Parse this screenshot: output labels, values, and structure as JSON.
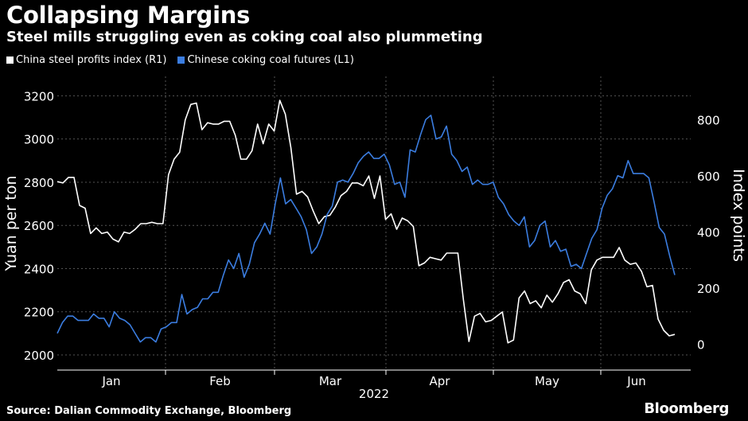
{
  "title": "Collapsing Margins",
  "subtitle": "Steel mills struggling even as coking coal also plummeting",
  "source": "Source: Dalian Commodity Exchange, Bloomberg",
  "brand": "Bloomberg",
  "colors": {
    "white_series": "#ffffff",
    "blue_series": "#3b7de0",
    "grid": "#555555",
    "background": "#000000"
  },
  "chart_data": {
    "type": "line",
    "year_label": "2022",
    "x_labels": [
      "Jan",
      "Feb",
      "Mar",
      "Apr",
      "May",
      "Jun"
    ],
    "left_axis": {
      "label": "Yuan per ton",
      "ticks": [
        2000,
        2200,
        2400,
        2600,
        2800,
        3000,
        3200
      ],
      "range": [
        1930,
        3290
      ]
    },
    "right_axis": {
      "label": "Index points",
      "ticks": [
        0,
        200,
        400,
        600,
        800
      ],
      "range": [
        -92,
        955
      ]
    },
    "series": [
      {
        "name": "China steel profits index (R1)",
        "axis": "right",
        "values": [
          580,
          575,
          595,
          595,
          495,
          485,
          395,
          415,
          395,
          400,
          375,
          365,
          400,
          395,
          410,
          430,
          430,
          435,
          430,
          430,
          605,
          660,
          685,
          800,
          855,
          860,
          765,
          790,
          785,
          785,
          795,
          795,
          745,
          660,
          660,
          690,
          785,
          715,
          785,
          760,
          870,
          820,
          700,
          535,
          545,
          525,
          475,
          430,
          455,
          460,
          490,
          530,
          545,
          575,
          575,
          565,
          600,
          520,
          600,
          445,
          465,
          410,
          450,
          440,
          420,
          280,
          290,
          310,
          305,
          300,
          325,
          325,
          325,
          160,
          10,
          100,
          110,
          80,
          85,
          100,
          115,
          5,
          15,
          165,
          190,
          145,
          155,
          130,
          175,
          150,
          180,
          220,
          230,
          190,
          180,
          145,
          265,
          300,
          310,
          310,
          310,
          345,
          300,
          285,
          290,
          260,
          205,
          210,
          90,
          50,
          30,
          35
        ]
      },
      {
        "name": "Chinese coking coal futures (L1)",
        "axis": "left",
        "values": [
          2100,
          2150,
          2180,
          2180,
          2160,
          2160,
          2160,
          2190,
          2170,
          2170,
          2130,
          2200,
          2170,
          2160,
          2140,
          2100,
          2060,
          2080,
          2080,
          2060,
          2120,
          2130,
          2150,
          2150,
          2280,
          2190,
          2210,
          2220,
          2260,
          2260,
          2290,
          2290,
          2370,
          2440,
          2400,
          2470,
          2360,
          2420,
          2520,
          2560,
          2610,
          2560,
          2700,
          2820,
          2700,
          2720,
          2680,
          2640,
          2580,
          2470,
          2500,
          2560,
          2650,
          2690,
          2800,
          2810,
          2800,
          2840,
          2890,
          2920,
          2940,
          2910,
          2910,
          2930,
          2880,
          2790,
          2800,
          2730,
          2950,
          2940,
          3020,
          3090,
          3110,
          3000,
          3010,
          3060,
          2930,
          2900,
          2850,
          2870,
          2790,
          2810,
          2790,
          2790,
          2800,
          2730,
          2700,
          2650,
          2620,
          2600,
          2640,
          2500,
          2530,
          2600,
          2620,
          2500,
          2530,
          2480,
          2490,
          2410,
          2420,
          2400,
          2470,
          2540,
          2580,
          2680,
          2740,
          2770,
          2830,
          2820,
          2900,
          2840,
          2840,
          2840,
          2820,
          2710,
          2590,
          2560,
          2460,
          2370
        ]
      }
    ]
  }
}
